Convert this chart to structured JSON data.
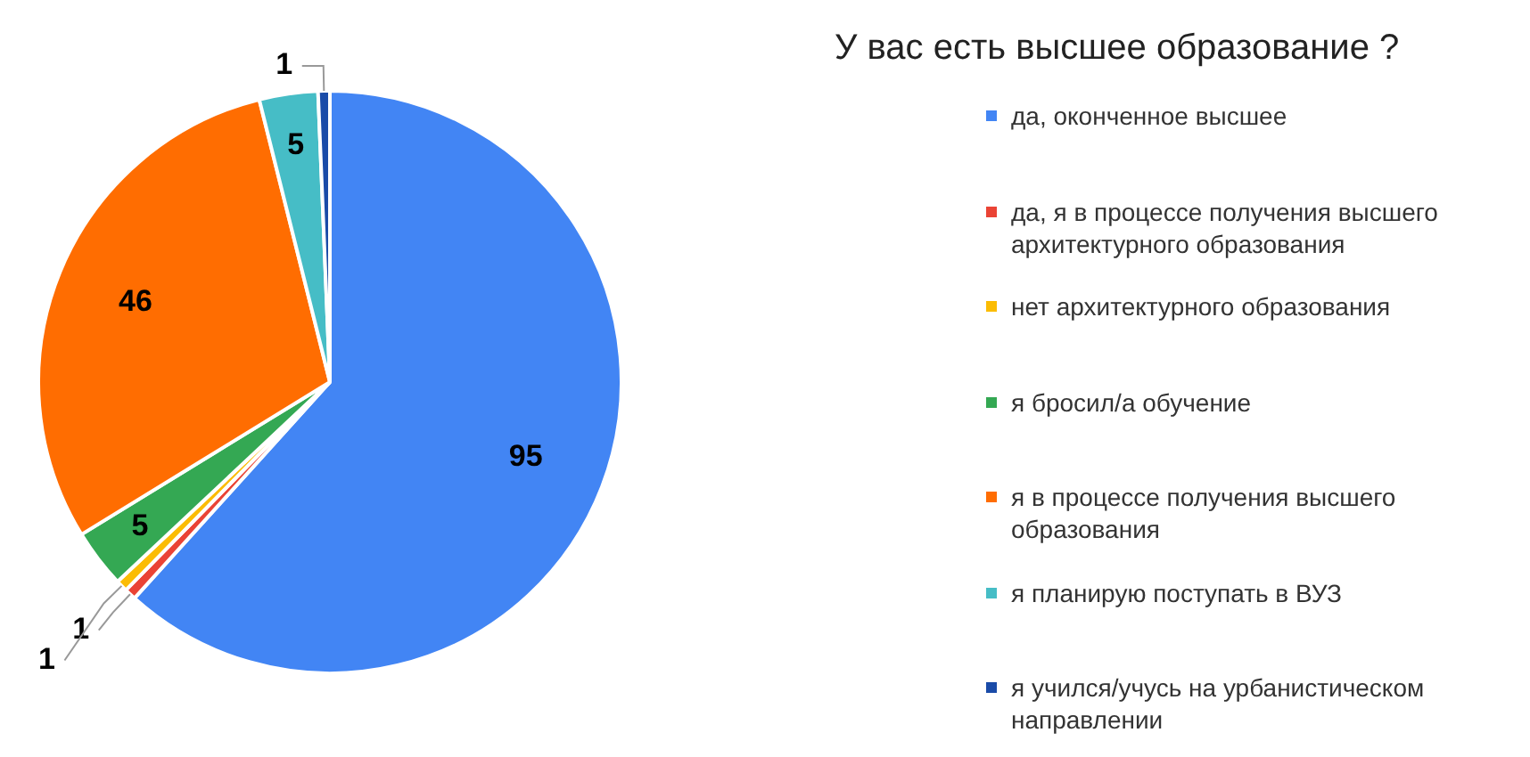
{
  "chart_data": {
    "type": "pie",
    "title": "У вас есть высшее образование ?",
    "categories": [
      "да, оконченное высшее",
      "да, я в процессе получения высшего архитектурного образования",
      "нет архитектурного образования",
      "я бросил/а обучение",
      "я в процессе получения высшего образования",
      "я планирую поступать в ВУЗ",
      "я учился/учусь на урбанистическом направлении"
    ],
    "values": [
      95,
      1,
      1,
      5,
      46,
      5,
      1
    ],
    "colors": [
      "#4285f4",
      "#ea4335",
      "#fbbc04",
      "#34a853",
      "#ff6d01",
      "#46bdc6",
      "#1a4ba8"
    ],
    "data_labels": true,
    "legend": "right"
  }
}
